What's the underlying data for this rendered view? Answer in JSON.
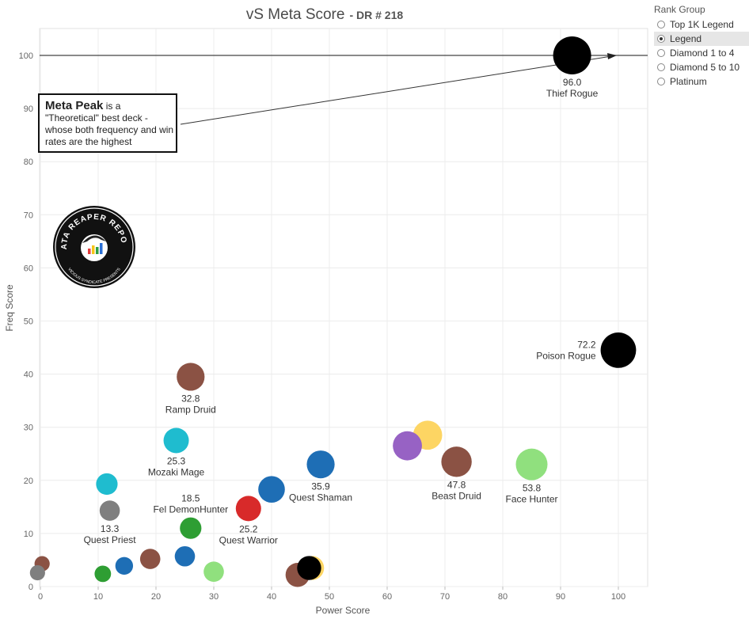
{
  "title": "vS Meta Score",
  "subtitle": "- DR # 218",
  "legend": {
    "title": "Rank Group",
    "items": [
      {
        "label": "Top 1K Legend",
        "selected": false
      },
      {
        "label": "Legend",
        "selected": true
      },
      {
        "label": "Diamond 1 to 4",
        "selected": false
      },
      {
        "label": "Diamond 5 to 10",
        "selected": false
      },
      {
        "label": "Platinum",
        "selected": false
      }
    ]
  },
  "annotation": {
    "bold": "Meta Peak",
    "text": " is a \"Theoretical\" best deck - whose both frequency and win rates are the highest"
  },
  "logo": {
    "text_top": "DATA REAPER REPORT",
    "text_bottom": "VICIOUS SYNDICATE PRESENTS",
    "colors": [
      "#ffffff",
      "#000000",
      "#e23b3b",
      "#f5c518",
      "#2e9e44",
      "#2a6fd6"
    ]
  },
  "chart_data": {
    "type": "scatter",
    "xlabel": "Power Score",
    "ylabel": "Freq Score",
    "xlim": [
      0,
      105
    ],
    "ylim": [
      0,
      105
    ],
    "xticks": [
      0,
      10,
      20,
      30,
      40,
      50,
      60,
      70,
      80,
      90,
      100
    ],
    "yticks": [
      0,
      10,
      20,
      30,
      40,
      50,
      60,
      70,
      80,
      90,
      100
    ],
    "grid": true,
    "reference_line_y": 100,
    "points": [
      {
        "x": 92,
        "y": 100,
        "score": "96.0",
        "label": "Thief Rogue",
        "color": "#000000",
        "size": 1.5,
        "label_pos": "below"
      },
      {
        "x": 100,
        "y": 44.5,
        "score": "72.2",
        "label": "Poison Rogue",
        "color": "#000000",
        "size": 1.4,
        "label_pos": "left"
      },
      {
        "x": 85,
        "y": 23,
        "score": "53.8",
        "label": "Face Hunter",
        "color": "#90e07e",
        "size": 1.25,
        "label_pos": "below"
      },
      {
        "x": 72,
        "y": 23.5,
        "score": "47.8",
        "label": "Beast Druid",
        "color": "#8b5244",
        "size": 1.2,
        "label_pos": "below"
      },
      {
        "x": 67,
        "y": 28.5,
        "score": "",
        "label": "",
        "color": "#fdd563",
        "size": 1.15,
        "label_pos": "none"
      },
      {
        "x": 63.5,
        "y": 26.5,
        "score": "",
        "label": "",
        "color": "#9762c4",
        "size": 1.15,
        "label_pos": "none"
      },
      {
        "x": 48.5,
        "y": 23,
        "score": "35.9",
        "label": "Quest Shaman",
        "color": "#1e6eb5",
        "size": 1.1,
        "label_pos": "below"
      },
      {
        "x": 40,
        "y": 18.3,
        "score": "",
        "label": "",
        "color": "#1e6eb5",
        "size": 1.05,
        "label_pos": "none"
      },
      {
        "x": 36,
        "y": 14.7,
        "score": "25.2",
        "label": "Quest Warrior",
        "color": "#d82a2a",
        "size": 1.0,
        "label_pos": "below"
      },
      {
        "x": 26,
        "y": 39.5,
        "score": "32.8",
        "label": "Ramp Druid",
        "color": "#8b5244",
        "size": 1.1,
        "label_pos": "below"
      },
      {
        "x": 23.5,
        "y": 27.5,
        "score": "25.3",
        "label": "Mozaki Mage",
        "color": "#1fbccf",
        "size": 1.0,
        "label_pos": "below"
      },
      {
        "x": 26,
        "y": 11,
        "score": "18.5",
        "label": "Fel DemonHunter",
        "color": "#2e9e33",
        "size": 0.85,
        "label_pos": "above"
      },
      {
        "x": 11.5,
        "y": 19.3,
        "score": "",
        "label": "",
        "color": "#1fbccf",
        "size": 0.85,
        "label_pos": "none"
      },
      {
        "x": 12,
        "y": 14.3,
        "score": "13.3",
        "label": "Quest Priest",
        "color": "#7f7f7f",
        "size": 0.8,
        "label_pos": "below"
      },
      {
        "x": 47,
        "y": 3.5,
        "score": "",
        "label": "",
        "color": "#fdd563",
        "size": 0.95,
        "label_pos": "none"
      },
      {
        "x": 44.5,
        "y": 2.2,
        "score": "",
        "label": "",
        "color": "#8b5244",
        "size": 0.95,
        "label_pos": "none"
      },
      {
        "x": 46.5,
        "y": 3.5,
        "score": "",
        "label": "",
        "color": "#000000",
        "size": 0.95,
        "label_pos": "none"
      },
      {
        "x": 30,
        "y": 2.8,
        "score": "",
        "label": "",
        "color": "#90e07e",
        "size": 0.8,
        "label_pos": "none"
      },
      {
        "x": 25,
        "y": 5.7,
        "score": "",
        "label": "",
        "color": "#1e6eb5",
        "size": 0.8,
        "label_pos": "none"
      },
      {
        "x": 19,
        "y": 5.2,
        "score": "",
        "label": "",
        "color": "#8b5244",
        "size": 0.8,
        "label_pos": "none"
      },
      {
        "x": 14.5,
        "y": 3.9,
        "score": "",
        "label": "",
        "color": "#1e6eb5",
        "size": 0.7,
        "label_pos": "none"
      },
      {
        "x": 10.8,
        "y": 2.4,
        "score": "",
        "label": "",
        "color": "#2e9e33",
        "size": 0.65,
        "label_pos": "none"
      },
      {
        "x": 0.3,
        "y": 4.3,
        "score": "",
        "label": "",
        "color": "#8b5244",
        "size": 0.6,
        "label_pos": "none"
      },
      {
        "x": -0.5,
        "y": 2.6,
        "score": "",
        "label": "",
        "color": "#7f7f7f",
        "size": 0.6,
        "label_pos": "none"
      }
    ]
  }
}
